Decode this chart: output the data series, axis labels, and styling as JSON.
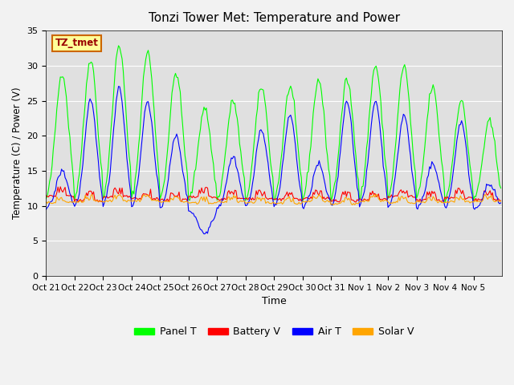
{
  "title": "Tonzi Tower Met: Temperature and Power",
  "xlabel": "Time",
  "ylabel": "Temperature (C) / Power (V)",
  "ylim": [
    0,
    35
  ],
  "yticks": [
    0,
    5,
    10,
    15,
    20,
    25,
    30,
    35
  ],
  "xtick_labels": [
    "Oct 21",
    "Oct 22",
    "Oct 23",
    "Oct 24",
    "Oct 25",
    "Oct 26",
    "Oct 27",
    "Oct 28",
    "Oct 29",
    "Oct 30",
    "Oct 31",
    "Nov 1",
    "Nov 2",
    "Nov 3",
    "Nov 4",
    "Nov 5"
  ],
  "box_label": "TZ_tmet",
  "box_facecolor": "#FFFF99",
  "box_edgecolor": "#CC6600",
  "box_textcolor": "#990000",
  "panel_color": "#00FF00",
  "battery_color": "#FF0000",
  "air_color": "#0000FF",
  "solar_color": "#FFA500",
  "bg_color": "#E0E0E0",
  "panel_peaks": [
    29,
    31,
    33,
    32,
    29,
    24,
    25,
    27,
    27,
    28,
    28,
    30,
    30,
    27,
    25,
    22
  ],
  "air_peaks": [
    15,
    25,
    27,
    25,
    20,
    6,
    17,
    21,
    23,
    16,
    25,
    25,
    23,
    16,
    22,
    13
  ],
  "num_days": 16
}
